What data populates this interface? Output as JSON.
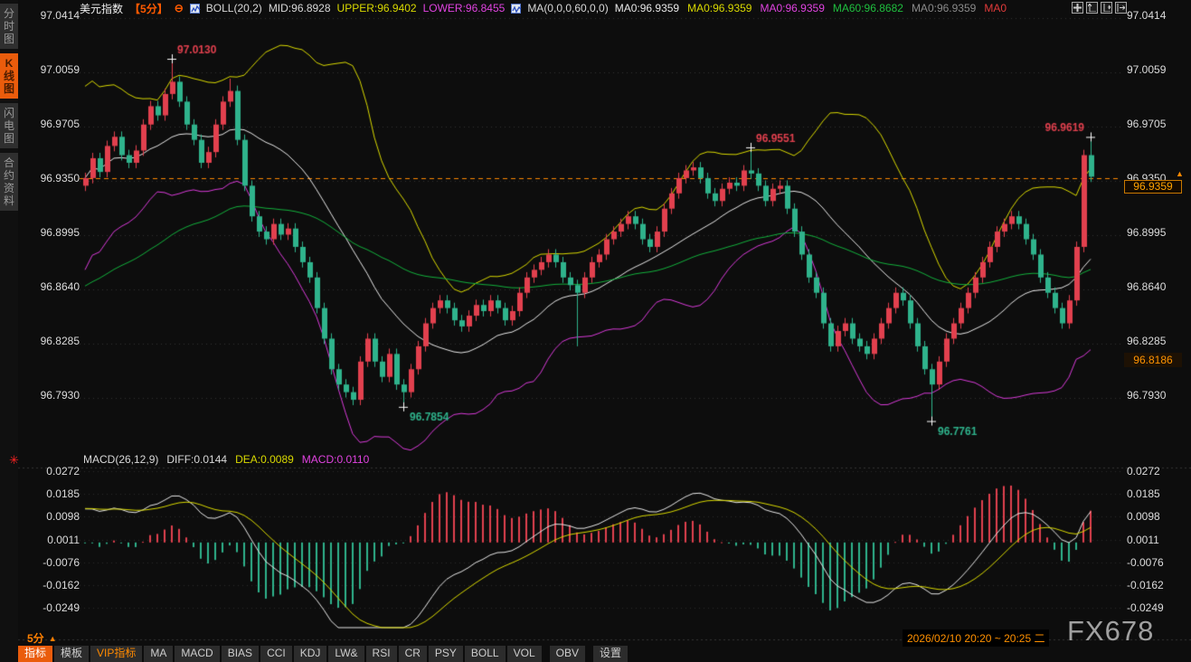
{
  "header": {
    "title": "美元指数",
    "period_tag": "【5分】",
    "collapse_icon": "⊖",
    "boll_label": "BOLL(20,2)",
    "mid": "MID:96.8928",
    "upper": "UPPER:96.9402",
    "lower": "LOWER:96.8455",
    "ma_group": "MA(0,0,0,60,0,0)",
    "ma_items": [
      {
        "label": "MA0:96.9359",
        "color": "#e8e8e8"
      },
      {
        "label": "MA0:96.9359",
        "color": "#d9d900"
      },
      {
        "label": "MA0:96.9359",
        "color": "#e043e0"
      },
      {
        "label": "MA60:96.8682",
        "color": "#1fbf3f"
      },
      {
        "label": "MA0:96.9359",
        "color": "#8a8a8a"
      },
      {
        "label": "MA0",
        "color": "#e23b3b"
      }
    ]
  },
  "sidebar": {
    "items": [
      {
        "label": "分时图",
        "key": "time-chart",
        "active": false
      },
      {
        "label": "K线图",
        "key": "kline-chart",
        "active": true
      },
      {
        "label": "闪电图",
        "key": "flash-chart",
        "active": false
      },
      {
        "label": "合约资料",
        "key": "contract-info",
        "active": false
      }
    ]
  },
  "macd_header": {
    "label": "MACD(26,12,9)",
    "diff": "DIFF:0.0144",
    "dea": "DEA:0.0089",
    "macd": "MACD:0.0110"
  },
  "toolbar": {
    "period": "5分",
    "tabs": [
      {
        "label": "指标",
        "key": "zhibiao",
        "style": "active"
      },
      {
        "label": "模板",
        "key": "moban",
        "style": ""
      },
      {
        "label": "VIP指标",
        "key": "vip",
        "style": "vip"
      },
      {
        "label": "MA",
        "key": "ma",
        "style": ""
      },
      {
        "label": "MACD",
        "key": "macd",
        "style": ""
      },
      {
        "label": "BIAS",
        "key": "bias",
        "style": ""
      },
      {
        "label": "CCI",
        "key": "cci",
        "style": ""
      },
      {
        "label": "KDJ",
        "key": "kdj",
        "style": ""
      },
      {
        "label": "LW&",
        "key": "lwr",
        "style": ""
      },
      {
        "label": "RSI",
        "key": "rsi",
        "style": ""
      },
      {
        "label": "CR",
        "key": "cr",
        "style": ""
      },
      {
        "label": "PSY",
        "key": "psy",
        "style": ""
      },
      {
        "label": "BOLL",
        "key": "boll",
        "style": ""
      },
      {
        "label": "VOL",
        "key": "vol",
        "style": ""
      },
      {
        "label": "OBV",
        "key": "obv",
        "style": "gap"
      },
      {
        "label": "设置",
        "key": "shezhi",
        "style": "gap"
      }
    ]
  },
  "footer": {
    "timerange": "2026/02/10 20:20 ~ 20:25 二",
    "watermark": "FX678"
  },
  "right_axis": {
    "price_box": "96.9359",
    "ref_price": "96.8186",
    "arrow": "▲"
  },
  "chart_data": {
    "type": "candlestick+macd",
    "instrument": "美元指数",
    "interval": "5分",
    "main_ticks": [
      "97.0414",
      "97.0059",
      "96.9705",
      "96.9350",
      "96.8995",
      "96.8640",
      "96.8285",
      "96.7930"
    ],
    "macd_ticks": [
      "0.0272",
      "0.0185",
      "0.0098",
      "0.0011",
      "-0.0076",
      "-0.0162",
      "-0.0249"
    ],
    "prev_close_line": 96.935,
    "last_price": 96.9359,
    "boll": {
      "period": 20,
      "dev": 2,
      "mid": 96.8928,
      "upper": 96.9402,
      "lower": 96.8455
    },
    "ma60": {
      "period": 60,
      "value": 96.8682,
      "seed": 96.862
    },
    "macd_params": {
      "slow": 26,
      "fast": 12,
      "signal": 9,
      "diff": 0.0144,
      "dea": 0.0089,
      "macd": 0.011
    },
    "first_open": 96.93,
    "closes": [
      96.935,
      96.948,
      96.939,
      96.956,
      96.962,
      96.95,
      96.945,
      96.953,
      96.97,
      96.982,
      96.976,
      96.99,
      96.998,
      96.985,
      96.97,
      96.96,
      96.945,
      96.952,
      96.97,
      96.985,
      96.992,
      96.96,
      96.93,
      96.91,
      96.9,
      96.895,
      96.905,
      96.898,
      96.902,
      96.89,
      96.88,
      96.87,
      96.85,
      96.83,
      96.81,
      96.8,
      96.795,
      96.79,
      96.815,
      96.83,
      96.815,
      96.805,
      96.82,
      96.8,
      96.795,
      96.81,
      96.825,
      96.84,
      96.85,
      96.855,
      96.85,
      96.842,
      96.838,
      96.845,
      96.852,
      96.848,
      96.855,
      96.85,
      96.842,
      96.848,
      96.86,
      96.87,
      96.875,
      96.88,
      96.885,
      96.88,
      96.87,
      96.865,
      96.86,
      96.87,
      96.88,
      96.885,
      96.895,
      96.9,
      96.905,
      96.91,
      96.905,
      96.895,
      96.89,
      96.9,
      96.915,
      96.925,
      96.935,
      96.94,
      96.942,
      96.935,
      96.925,
      96.92,
      96.928,
      96.932,
      96.93,
      96.94,
      96.938,
      96.93,
      96.92,
      96.928,
      96.93,
      96.915,
      96.9,
      96.885,
      96.87,
      96.86,
      96.84,
      96.825,
      96.835,
      96.84,
      96.83,
      96.825,
      96.82,
      96.83,
      96.84,
      96.85,
      96.86,
      96.855,
      96.84,
      96.825,
      96.81,
      96.8,
      96.815,
      96.83,
      96.84,
      96.85,
      96.86,
      96.87,
      96.88,
      96.89,
      96.9,
      96.905,
      96.91,
      96.905,
      96.895,
      96.885,
      96.87,
      96.86,
      96.85,
      96.84,
      96.855,
      96.89,
      96.95,
      96.9359
    ],
    "wick_overrides": {
      "12": {
        "high": 97.013
      },
      "20": {
        "high": 97.0
      },
      "44": {
        "low": 96.7854
      },
      "68": {
        "low": 96.825
      },
      "92": {
        "high": 96.9551
      },
      "117": {
        "low": 96.7761
      },
      "139": {
        "high": 96.9619
      }
    },
    "annotations": [
      {
        "index": 12,
        "price": 97.013,
        "label": "97.0130",
        "side": "above"
      },
      {
        "index": 44,
        "price": 96.7854,
        "label": "96.7854",
        "side": "below"
      },
      {
        "index": 92,
        "price": 96.9551,
        "label": "96.9551",
        "side": "above"
      },
      {
        "index": 117,
        "price": 96.7761,
        "label": "96.7761",
        "side": "below"
      },
      {
        "index": 139,
        "price": 96.9619,
        "label": "96.9619",
        "side": "above"
      }
    ],
    "colors": {
      "up": "#e2404e",
      "down": "#2fb38c",
      "boll_mid": "#e8e8e8",
      "boll_upper": "#d9d900",
      "boll_lower": "#d93ad9",
      "ma60": "#12b13c",
      "diff": "#e8e8e8",
      "dea": "#d9d900",
      "grid": "#343434",
      "prev_close": "#ff8800",
      "marker": "#ffffff"
    },
    "legend_position": "top",
    "grid": "dotted-horizontal"
  }
}
